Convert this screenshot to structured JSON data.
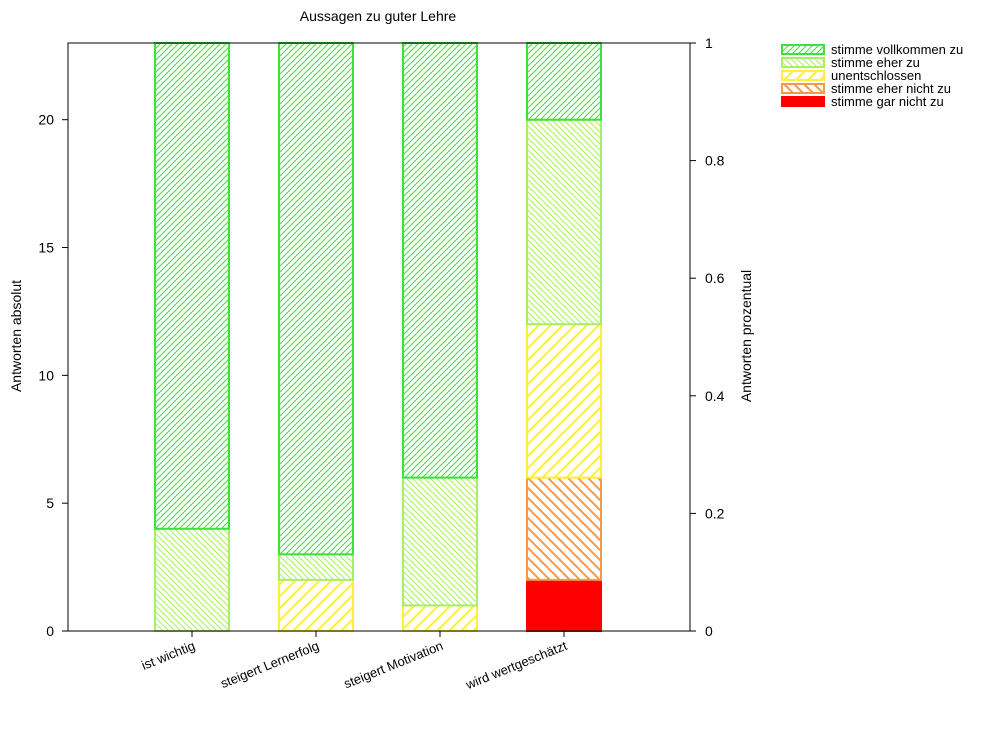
{
  "chart_data": {
    "type": "bar",
    "stacked": true,
    "title": "Aussagen zu guter Lehre",
    "ylabel": "Antworten absolut",
    "ylabel_right": "Antworten prozentual",
    "categories": [
      "ist wichtig",
      "steigert Lernerfolg",
      "steigert Motivation",
      "wird wertgeschätzt"
    ],
    "ylim": [
      0,
      23
    ],
    "yticks": [
      "0",
      "5",
      "10",
      "15",
      "20"
    ],
    "y2lim": [
      0,
      1
    ],
    "y2ticks": [
      "0",
      "0.2",
      "0.4",
      "0.6",
      "0.8",
      "1"
    ],
    "legend_position": "top-right outside",
    "series": [
      {
        "name": "stimme gar nicht zu",
        "values": [
          0,
          0,
          0,
          2
        ],
        "color": "#ff0000",
        "pattern": "solid"
      },
      {
        "name": "stimme eher nicht zu",
        "values": [
          0,
          0,
          0,
          4
        ],
        "color": "#f39a4a",
        "pattern": "backslash"
      },
      {
        "name": "unentschlossen",
        "values": [
          0,
          2,
          1,
          6
        ],
        "color": "#ffee3a",
        "pattern": "slash-wide"
      },
      {
        "name": "stimme eher zu",
        "values": [
          4,
          1,
          5,
          8
        ],
        "color": "#a9ee6a",
        "pattern": "backslash-fine"
      },
      {
        "name": "stimme vollkommen zu",
        "values": [
          19,
          20,
          17,
          3
        ],
        "color": "#3de03d",
        "pattern": "slash-fine"
      }
    ],
    "legend_order": [
      "stimme vollkommen zu",
      "stimme eher zu",
      "unentschlossen",
      "stimme eher nicht zu",
      "stimme gar nicht zu"
    ]
  }
}
